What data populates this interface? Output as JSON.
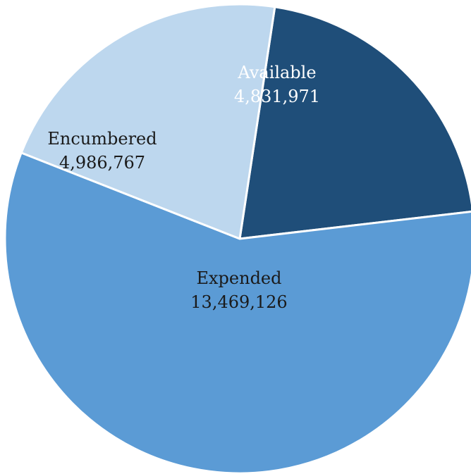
{
  "chart_data": {
    "type": "pie",
    "categories": [
      "Available",
      "Expended",
      "Encumbered"
    ],
    "values": [
      4831971,
      13469126,
      4986767
    ],
    "value_labels": [
      "4,831,971",
      "13,469,126",
      "4,986,767"
    ],
    "colors": [
      "#1f4e79",
      "#5b9bd5",
      "#bdd7ee"
    ],
    "label_colors": [
      "#ffffff",
      "#1a1a1a",
      "#1a1a1a"
    ],
    "title": "",
    "legend": "none"
  }
}
